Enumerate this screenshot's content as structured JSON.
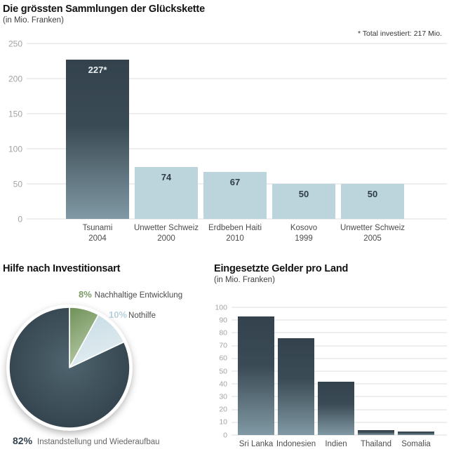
{
  "chart_data": [
    {
      "type": "bar",
      "title": "Die grössten Sammlungen der Glückskette",
      "subtitle": "(in Mio. Franken)",
      "note": "* Total investiert: 217 Mio.",
      "categories": [
        [
          "Tsunami",
          "2004"
        ],
        [
          "Unwetter Schweiz",
          "2000"
        ],
        [
          "Erdbeben Haiti",
          "2010"
        ],
        [
          "Kosovo",
          "1999"
        ],
        [
          "Unwetter Schweiz",
          "2005"
        ]
      ],
      "values": [
        227,
        74,
        67,
        50,
        50
      ],
      "bar_labels": [
        "227*",
        "74",
        "67",
        "50",
        "50"
      ],
      "highlight_index": 0,
      "ylabel": "Mio. Franken",
      "ylim": [
        0,
        250
      ],
      "yticks": [
        0,
        50,
        100,
        150,
        200,
        250
      ],
      "grid": true
    },
    {
      "type": "pie",
      "title": "Hilfe nach Investitionsart",
      "slices": [
        {
          "pct": "8%",
          "label": "Nachhaltige Entwicklung",
          "value": 8,
          "fill": "green"
        },
        {
          "pct": "10%",
          "label": "Nothilfe",
          "value": 10,
          "fill": "blue"
        },
        {
          "pct": "82%",
          "label": "Instandstellung und Wiederaufbau",
          "value": 82,
          "fill": "dark"
        }
      ],
      "start_angle": "top",
      "direction": "clockwise"
    },
    {
      "type": "bar",
      "title": "Eingesetzte Gelder pro Land",
      "subtitle": "(in Mio. Franken)",
      "categories": [
        [
          "Sri Lanka"
        ],
        [
          "Indonesien"
        ],
        [
          "Indien"
        ],
        [
          "Thailand"
        ],
        [
          "Somalia"
        ]
      ],
      "values": [
        93,
        76,
        42,
        4,
        3
      ],
      "ylabel": "Mio. Franken",
      "ylim": [
        0,
        100
      ],
      "yticks": [
        0,
        10,
        20,
        30,
        40,
        50,
        60,
        70,
        80,
        90,
        100
      ],
      "grid": true
    }
  ],
  "palette": {
    "title": "#121212",
    "label": "#4d4d4d",
    "tick": "#a3a3a3",
    "grid": "#dcdcdc",
    "value_dark": "#2e3e48",
    "bar_dark_top": "#33424c",
    "bar_dark_mid": "#3b4b55",
    "bar_dark_bottom": "#8099a4",
    "bar_light": "#bcd5dc",
    "pie_dark_center": "#4e646e",
    "pie_dark_edge": "#31404a",
    "pie_green_top": "#6f9157",
    "pie_green_bottom": "#b6c9a7",
    "pie_blue_top": "#c6dbe4",
    "pie_blue_bottom": "#e2edf1",
    "pct_green": "#7d9c66",
    "pct_blue": "#b7d0da",
    "pct_dark": "#34444f"
  }
}
